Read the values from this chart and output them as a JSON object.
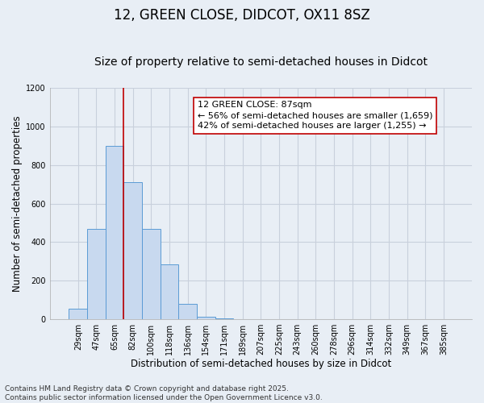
{
  "title": "12, GREEN CLOSE, DIDCOT, OX11 8SZ",
  "subtitle": "Size of property relative to semi-detached houses in Didcot",
  "xlabel": "Distribution of semi-detached houses by size in Didcot",
  "ylabel": "Number of semi-detached properties",
  "categories": [
    "29sqm",
    "47sqm",
    "65sqm",
    "82sqm",
    "100sqm",
    "118sqm",
    "136sqm",
    "154sqm",
    "171sqm",
    "189sqm",
    "207sqm",
    "225sqm",
    "243sqm",
    "260sqm",
    "278sqm",
    "296sqm",
    "314sqm",
    "332sqm",
    "349sqm",
    "367sqm",
    "385sqm"
  ],
  "values": [
    55,
    470,
    900,
    710,
    470,
    285,
    80,
    14,
    5,
    0,
    0,
    0,
    0,
    0,
    0,
    0,
    0,
    0,
    0,
    0,
    0
  ],
  "bar_color": "#c8d9ef",
  "bar_edge_color": "#5b9bd5",
  "bar_width": 1.0,
  "vline_x": 2.5,
  "vline_color": "#c00000",
  "annotation_text": "12 GREEN CLOSE: 87sqm\n← 56% of semi-detached houses are smaller (1,659)\n42% of semi-detached houses are larger (1,255) →",
  "annotation_box_color": "white",
  "annotation_box_edge_color": "#c00000",
  "ylim": [
    0,
    1200
  ],
  "yticks": [
    0,
    200,
    400,
    600,
    800,
    1000,
    1200
  ],
  "grid_color": "#c8d0dc",
  "background_color": "#e8eef5",
  "footnote": "Contains HM Land Registry data © Crown copyright and database right 2025.\nContains public sector information licensed under the Open Government Licence v3.0.",
  "title_fontsize": 12,
  "subtitle_fontsize": 10,
  "xlabel_fontsize": 8.5,
  "ylabel_fontsize": 8.5,
  "tick_fontsize": 7,
  "annotation_fontsize": 8,
  "footnote_fontsize": 6.5
}
